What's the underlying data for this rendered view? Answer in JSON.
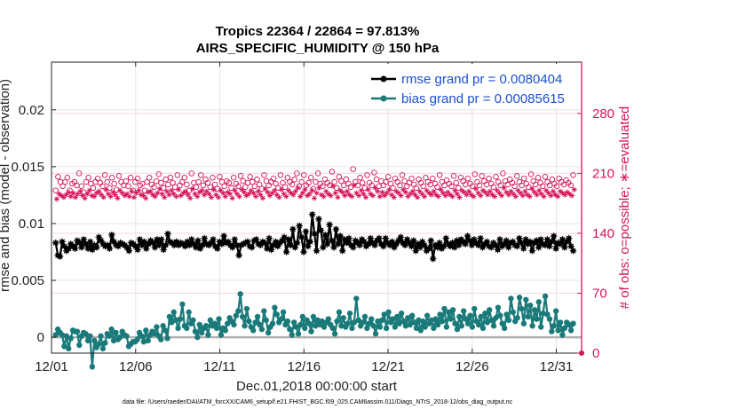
{
  "chart_data": {
    "type": "line",
    "title": "Tropics 22364 / 22864 = 97.813%",
    "subtitle": "AIRS_SPECIFIC_HUMIDITY @ 150 hPa",
    "xlabel": "Dec.01,2018 00:00:00 start",
    "ylabel_left": "rmse and bias (model - observation)",
    "ylabel_right": "# of obs: o=possible; ∗=evaluated",
    "x_tick_labels": [
      "12/01",
      "12/06",
      "12/11",
      "12/16",
      "12/21",
      "12/26",
      "12/31"
    ],
    "y_tick_labels_left": [
      "0",
      "0.005",
      "0.01",
      "0.015",
      "0.02"
    ],
    "y_tick_labels_right": [
      "0",
      "70",
      "140",
      "210",
      "280"
    ],
    "xlim_days": [
      0,
      31.5
    ],
    "ylim_left": [
      -0.0014,
      0.0242
    ],
    "ylim_right": [
      0,
      340
    ],
    "grid": true,
    "legend_placement": "top-right",
    "footer": "data file: /Users/raeder/DAI/ATM_forcXX/CAM6_setup/f.e21.FHIST_BGC.f09_025.CAM6assim.011/Diags_NTrS_2018-12/obs_diag_output.nc",
    "series": [
      {
        "name": "rmse grand pr = 0.0080404",
        "color": "#000000",
        "marker": "star",
        "values": [
          0.0083,
          0.0072,
          0.0071,
          0.0084,
          0.008,
          0.0076,
          0.0078,
          0.0082,
          0.008,
          0.0078,
          0.0085,
          0.0083,
          0.0079,
          0.0086,
          0.0082,
          0.0078,
          0.0084,
          0.0077,
          0.0081,
          0.0079,
          0.0088,
          0.0085,
          0.0082,
          0.008,
          0.0081,
          0.0078,
          0.009,
          0.0084,
          0.0081,
          0.008,
          0.0083,
          0.0082,
          0.0081,
          0.0079,
          0.0076,
          0.0083,
          0.0082,
          0.008,
          0.0077,
          0.0086,
          0.0081,
          0.0084,
          0.0078,
          0.0082,
          0.0085,
          0.0083,
          0.0079,
          0.0086,
          0.0081,
          0.0086,
          0.0077,
          0.0081,
          0.0091,
          0.0084,
          0.0083,
          0.0081,
          0.0084,
          0.0081,
          0.0083,
          0.0082,
          0.008,
          0.0084,
          0.0081,
          0.0086,
          0.0082,
          0.0079,
          0.0085,
          0.0078,
          0.0081,
          0.0087,
          0.0082,
          0.0081,
          0.0083,
          0.0086,
          0.008,
          0.0078,
          0.0084,
          0.0082,
          0.0089,
          0.0083,
          0.0084,
          0.0081,
          0.0079,
          0.0086,
          0.0081,
          0.0072,
          0.0081,
          0.0082,
          0.0083,
          0.0084,
          0.008,
          0.0079,
          0.0085,
          0.0086,
          0.0082,
          0.0081,
          0.0084,
          0.0083,
          0.0078,
          0.0087,
          0.0077,
          0.0081,
          0.0084,
          0.008,
          0.0083,
          0.0085,
          0.0088,
          0.0075,
          0.0086,
          0.0081,
          0.0095,
          0.0079,
          0.0083,
          0.0098,
          0.0088,
          0.0075,
          0.0093,
          0.008,
          0.0084,
          0.0108,
          0.0091,
          0.0076,
          0.0104,
          0.0094,
          0.0079,
          0.009,
          0.0082,
          0.0099,
          0.0085,
          0.0079,
          0.0095,
          0.0082,
          0.0089,
          0.0076,
          0.0086,
          0.0083,
          0.0087,
          0.0081,
          0.0079,
          0.0085,
          0.0083,
          0.0081,
          0.0086,
          0.0084,
          0.008,
          0.0082,
          0.0087,
          0.0083,
          0.0081,
          0.0085,
          0.0087,
          0.0082,
          0.008,
          0.0087,
          0.0083,
          0.0081,
          0.0084,
          0.0079,
          0.0082,
          0.0085,
          0.0088,
          0.0083,
          0.0081,
          0.0086,
          0.0083,
          0.008,
          0.0085,
          0.0076,
          0.0082,
          0.0079,
          0.0084,
          0.0081,
          0.0076,
          0.0078,
          0.0085,
          0.0069,
          0.0081,
          0.0079,
          0.0083,
          0.0078,
          0.008,
          0.0087,
          0.0082,
          0.008,
          0.0083,
          0.0079,
          0.0085,
          0.0081,
          0.0086,
          0.0084,
          0.0082,
          0.0089,
          0.0085,
          0.0081,
          0.0086,
          0.0083,
          0.0081,
          0.0087,
          0.0079,
          0.0082,
          0.0084,
          0.008,
          0.0079,
          0.0083,
          0.0081,
          0.0077,
          0.0086,
          0.008,
          0.0082,
          0.0085,
          0.0079,
          0.0083,
          0.0084,
          0.0081,
          0.008,
          0.0087,
          0.0083,
          0.0078,
          0.0086,
          0.0082,
          0.0084,
          0.0076,
          0.0083,
          0.0085,
          0.0079,
          0.0086,
          0.0082,
          0.0081,
          0.0086,
          0.008,
          0.0084,
          0.0089,
          0.0078,
          0.0083,
          0.0082,
          0.0086,
          0.0079,
          0.0084,
          0.0087,
          0.008,
          0.0076
        ]
      },
      {
        "name": "bias grand pr = 0.00085615",
        "color": "#1a7a7a",
        "marker": "circle",
        "values": [
          0.0002,
          0.0007,
          0.0004,
          0.0002,
          -0.0008,
          0.0001,
          -0.001,
          -0.0001,
          0.0006,
          0.0005,
          0.0005,
          -0.0007,
          0.0001,
          0.0004,
          0.0003,
          -0.0003,
          0.0001,
          -0.0026,
          -0.0003,
          -0.0009,
          -0.0006,
          0.0001,
          -0.001,
          -0.0005,
          0.0003,
          0.0001,
          0.0007,
          -0.0003,
          0.0004,
          -0.0002,
          0.0,
          0.0005,
          0.0002,
          0.0001,
          -0.0008,
          -0.0006,
          -0.0004,
          -0.0004,
          -0.0002,
          0.0004,
          0.0001,
          -0.0004,
          0.0006,
          -0.0003,
          0.0002,
          0.0005,
          0.0003,
          0.0009,
          0.0001,
          -0.0002,
          0.001,
          0.0006,
          -0.0001,
          0.0018,
          0.0013,
          0.0022,
          0.0015,
          0.0008,
          0.0016,
          0.0029,
          0.001,
          0.0008,
          0.0022,
          0.0012,
          0.0015,
          0.0005,
          0.0,
          0.0011,
          0.0004,
          0.0008,
          0.001,
          0.0002,
          0.0015,
          0.001,
          0.0012,
          0.0008,
          0.0016,
          0.0002,
          0.0008,
          0.0006,
          0.0012,
          0.0017,
          0.0014,
          0.0011,
          0.0019,
          0.0023,
          0.0038,
          0.0018,
          0.001,
          0.0025,
          0.0014,
          0.0009,
          0.0006,
          0.0013,
          0.0018,
          0.0011,
          0.0007,
          0.0023,
          0.0015,
          0.0004,
          0.0009,
          0.0012,
          0.0026,
          0.002,
          0.0013,
          0.0016,
          0.0022,
          0.0011,
          0.0014,
          0.0007,
          0.0002,
          0.0013,
          0.0009,
          0.0003,
          0.0011,
          0.0018,
          0.0008,
          0.0015,
          0.0012,
          0.0005,
          0.0018,
          0.001,
          0.0015,
          0.0011,
          0.0014,
          0.0009,
          0.0013,
          0.0016,
          0.0011,
          0.0008,
          0.0003,
          0.0014,
          0.0022,
          0.001,
          0.0017,
          0.0009,
          0.0012,
          0.0021,
          0.0008,
          0.0013,
          0.0034,
          0.0015,
          0.001,
          0.0013,
          0.0018,
          0.0008,
          0.0012,
          0.0016,
          0.001,
          0.0003,
          0.0014,
          0.0009,
          0.0015,
          0.002,
          0.0008,
          0.0022,
          0.0013,
          0.0016,
          0.0009,
          0.0018,
          0.0012,
          0.0021,
          0.0014,
          0.001,
          0.0017,
          0.0011,
          0.0019,
          0.0013,
          0.0008,
          0.0015,
          0.0006,
          0.0014,
          0.0009,
          0.0019,
          0.0012,
          0.0015,
          0.0008,
          0.0016,
          0.0011,
          0.002,
          0.0014,
          0.0025,
          0.0009,
          0.0022,
          0.0016,
          0.0024,
          0.0012,
          0.0007,
          0.0018,
          0.001,
          0.0023,
          0.0016,
          0.0012,
          0.0019,
          0.0009,
          0.0025,
          0.0014,
          0.0011,
          0.0018,
          0.0008,
          0.0021,
          0.0013,
          0.0024,
          0.0015,
          0.001,
          0.0017,
          0.0026,
          0.0019,
          0.0012,
          0.0008,
          0.002,
          0.0015,
          0.0034,
          0.0022,
          0.0014,
          0.0017,
          0.0035,
          0.0025,
          0.0012,
          0.0033,
          0.0018,
          0.0028,
          0.001,
          0.0024,
          0.0016,
          0.0031,
          0.0009,
          0.0021,
          0.0036,
          0.002,
          0.0016,
          0.0005,
          0.001,
          0.0023,
          0.0006,
          0.0013,
          0.0002,
          0.0008,
          0.0013,
          0.0011,
          0.0006,
          0.0012
        ]
      },
      {
        "name": "possible",
        "color": "#d6145a",
        "marker": "open-circle",
        "axis": "right",
        "values": [
          190,
          206,
          200,
          195,
          200,
          205,
          190,
          198,
          200,
          196,
          210,
          195,
          188,
          200,
          205,
          198,
          193,
          200,
          204,
          199,
          195,
          208,
          200,
          193,
          205,
          198,
          191,
          207,
          200,
          196,
          201,
          195,
          205,
          190,
          200,
          204,
          196,
          198,
          190,
          200,
          205,
          197,
          194,
          201,
          209,
          199,
          193,
          203,
          197,
          205,
          199,
          194,
          208,
          196,
          200,
          205,
          197,
          190,
          210,
          199,
          194,
          200,
          208,
          196,
          203,
          199,
          194,
          205,
          197,
          192,
          206,
          200,
          195,
          201,
          199,
          193,
          205,
          198,
          195,
          207,
          201,
          194,
          199,
          206,
          200,
          195,
          203,
          197,
          192,
          208,
          201,
          196,
          200,
          204,
          198,
          193,
          208,
          199,
          194,
          205,
          200,
          197,
          203,
          210,
          195,
          200,
          208,
          196,
          199,
          205,
          192,
          200,
          210,
          198,
          195,
          203,
          199,
          196,
          212,
          200,
          193,
          206,
          201,
          196,
          203,
          198,
          194,
          215,
          200,
          196,
          205,
          199,
          193,
          208,
          199,
          196,
          211,
          203,
          195,
          201,
          196,
          200,
          206,
          198,
          193,
          204,
          200,
          196,
          208,
          201,
          195,
          199,
          204,
          197,
          193,
          203,
          199,
          195,
          205,
          200,
          197,
          204,
          198,
          194,
          208,
          200,
          196,
          202,
          198,
          195,
          207,
          199,
          193,
          205,
          201,
          197,
          204,
          198,
          195,
          209,
          200,
          196,
          207,
          201,
          197,
          204,
          198,
          194,
          206,
          200,
          196,
          210,
          201,
          197,
          203,
          199,
          195,
          207,
          200,
          196,
          204,
          198,
          194,
          209,
          201,
          197,
          205,
          199,
          195,
          206,
          200,
          196,
          203,
          198,
          195,
          204,
          200,
          197,
          202,
          199,
          196,
          208
        ]
      },
      {
        "name": "evaluated",
        "color": "#d6145a",
        "marker": "asterisk",
        "axis": "right",
        "values": [
          180,
          186,
          184,
          182,
          185,
          188,
          183,
          187,
          182,
          186,
          189,
          184,
          181,
          186,
          190,
          184,
          183,
          187,
          189,
          185,
          182,
          191,
          186,
          183,
          188,
          185,
          181,
          190,
          187,
          184,
          186,
          183,
          189,
          182,
          187,
          190,
          185,
          184,
          181,
          188,
          189,
          185,
          183,
          187,
          192,
          186,
          182,
          189,
          185,
          190,
          186,
          183,
          191,
          184,
          187,
          189,
          185,
          181,
          192,
          186,
          183,
          188,
          190,
          185,
          189,
          186,
          182,
          191,
          185,
          182,
          190,
          187,
          183,
          188,
          186,
          181,
          190,
          186,
          183,
          191,
          188,
          184,
          186,
          190,
          187,
          183,
          189,
          185,
          181,
          192,
          188,
          184,
          187,
          190,
          185,
          182,
          191,
          186,
          183,
          190,
          187,
          185,
          189,
          193,
          183,
          187,
          191,
          184,
          186,
          190,
          181,
          187,
          193,
          185,
          183,
          189,
          186,
          184,
          195,
          187,
          182,
          190,
          188,
          184,
          189,
          185,
          183,
          196,
          187,
          184,
          190,
          186,
          182,
          191,
          186,
          184,
          193,
          189,
          183,
          188,
          184,
          187,
          191,
          185,
          182,
          189,
          187,
          184,
          191,
          188,
          183,
          186,
          189,
          185,
          182,
          189,
          186,
          183,
          190,
          187,
          185,
          189,
          185,
          183,
          191,
          187,
          184,
          188,
          185,
          183,
          190,
          186,
          182,
          190,
          188,
          185,
          189,
          185,
          183,
          192,
          187,
          184,
          190,
          188,
          185,
          189,
          185,
          183,
          190,
          187,
          184,
          193,
          188,
          185,
          189,
          186,
          183,
          190,
          187,
          184,
          189,
          185,
          183,
          192,
          188,
          185,
          190,
          186,
          183,
          190,
          187,
          184,
          189,
          185,
          183,
          189,
          187,
          185,
          188,
          186,
          184,
          191
        ]
      }
    ]
  }
}
